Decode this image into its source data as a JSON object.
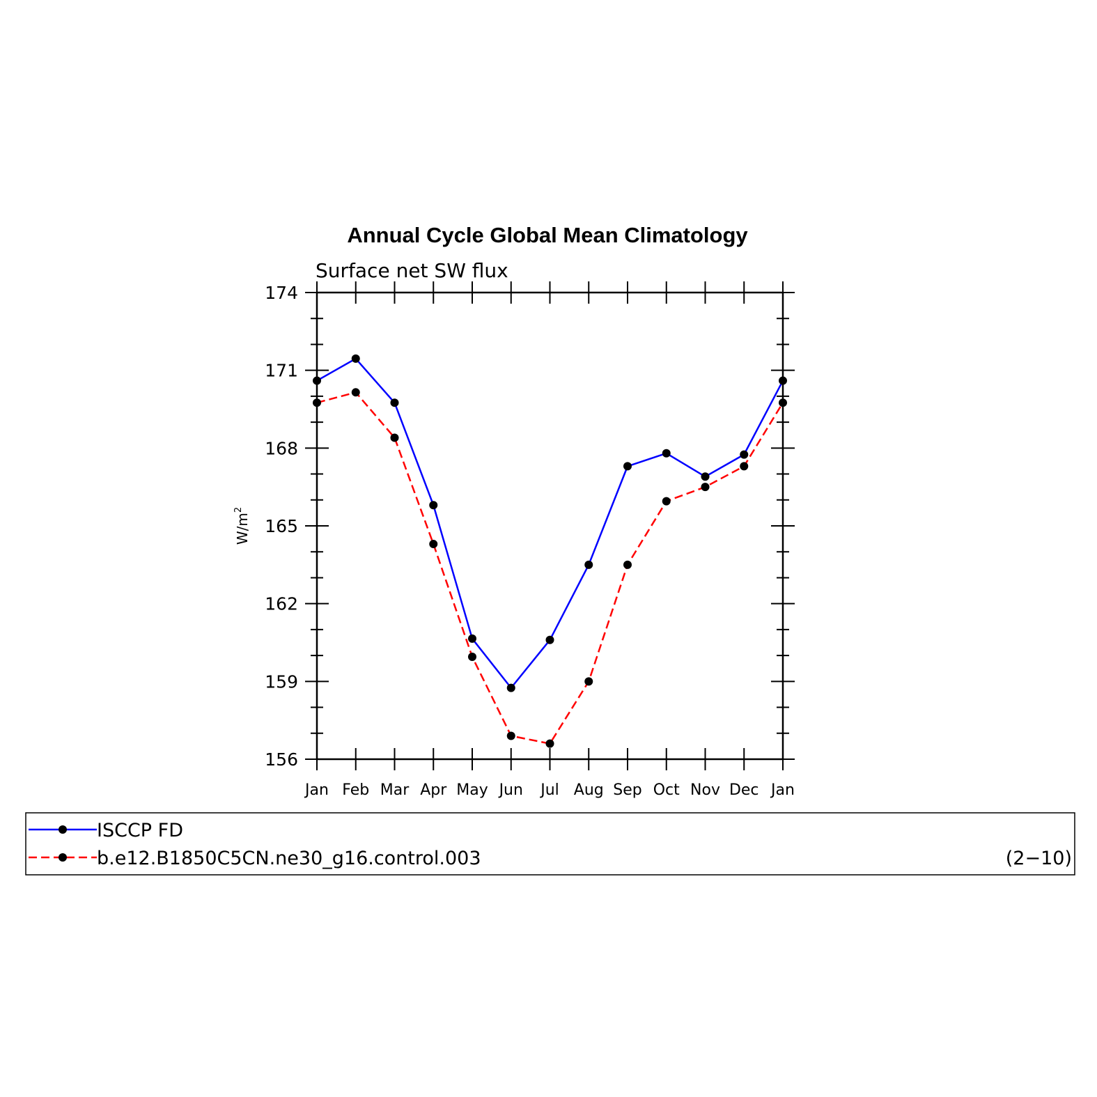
{
  "chart_data": {
    "type": "line",
    "title": "Annual Cycle Global Mean Climatology",
    "subtitle": "Surface net SW flux",
    "ylabel": "W/m",
    "ylabel_superscript": "2",
    "xlabel": "",
    "ylim": [
      156,
      174
    ],
    "yticks": [
      156,
      159,
      162,
      165,
      168,
      171,
      174
    ],
    "categories": [
      "Jan",
      "Feb",
      "Mar",
      "Apr",
      "May",
      "Jun",
      "Jul",
      "Aug",
      "Sep",
      "Oct",
      "Nov",
      "Dec",
      "Jan"
    ],
    "series": [
      {
        "name": "ISCCP FD",
        "color": "#0000ff",
        "dash": "solid",
        "values": [
          170.6,
          171.45,
          169.75,
          165.8,
          160.65,
          158.75,
          160.6,
          163.5,
          167.3,
          167.8,
          166.9,
          167.75,
          170.6
        ]
      },
      {
        "name": "b.e12.B1850C5CN.ne30_g16.control.003",
        "color": "#ff0000",
        "dash": "dashed",
        "values": [
          169.75,
          170.15,
          168.4,
          164.3,
          159.95,
          156.9,
          156.6,
          159.0,
          163.5,
          165.95,
          166.5,
          167.3,
          169.75
        ]
      }
    ],
    "legend_note": "(2−10)",
    "legend_position": "bottom"
  }
}
